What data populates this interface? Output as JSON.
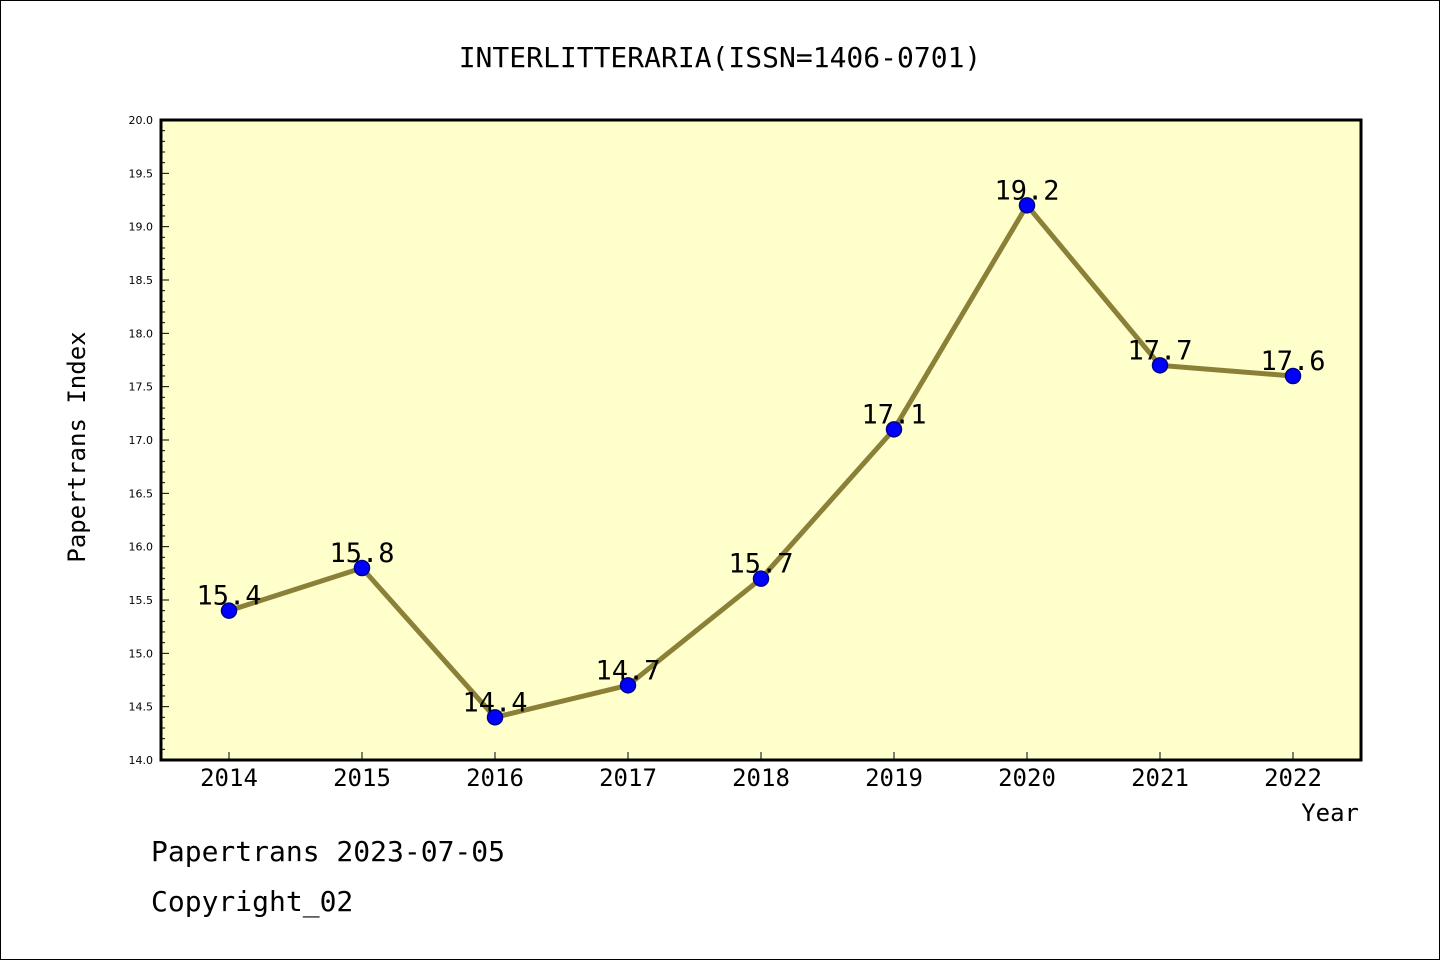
{
  "chart_data": {
    "type": "line",
    "title": "INTERLITTERARIA(ISSN=1406-0701)",
    "xlabel": "Year",
    "ylabel": "Papertrans Index",
    "categories": [
      "2014",
      "2015",
      "2016",
      "2017",
      "2018",
      "2019",
      "2020",
      "2021",
      "2022"
    ],
    "series": [
      {
        "values": [
          15.4,
          15.8,
          14.4,
          14.7,
          15.7,
          17.1,
          19.2,
          17.7,
          17.6
        ]
      }
    ],
    "data_labels": [
      "15.4",
      "15.8",
      "14.4",
      "14.7",
      "15.7",
      "17.1",
      "19.2",
      "17.7",
      "17.6"
    ],
    "ylim": [
      14.0,
      20.0
    ],
    "y_ticks": [
      "14.0",
      "14.5",
      "15.0",
      "15.5",
      "16.0",
      "16.5",
      "17.0",
      "17.5",
      "18.0",
      "18.5",
      "19.0",
      "19.5",
      "20.0"
    ],
    "grid": false,
    "legend": "none",
    "colors": {
      "plot_background": "#ffffcc",
      "line": "#8b8038",
      "marker": "#0000ff",
      "marker_edge": "#00008b"
    }
  },
  "footer": {
    "date_line": "Papertrans 2023-07-05",
    "copyright_line": "Copyright_02"
  }
}
